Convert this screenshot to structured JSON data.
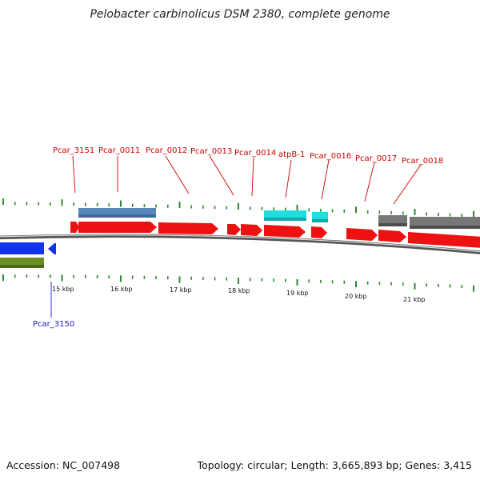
{
  "title": "Pelobacter carbinolicus DSM 2380, complete genome",
  "footer": {
    "accession": "Accession: NC_007498",
    "summary": "Topology: circular; Length: 3,665,893 bp; Genes: 3,415"
  },
  "colors": {
    "cds": "#ee1111",
    "rna": "#5588bb",
    "atp": "#22dddd",
    "grey": "#666666",
    "reverse_blue": "#1133ee",
    "olive": "#6b8e23",
    "tick": "#2b8a2b",
    "label_forward": "#cc0000",
    "label_reverse": "#1a1acc"
  },
  "kbp_labels": [
    "15 kbp",
    "16 kbp",
    "17 kbp",
    "18 kbp",
    "19 kbp",
    "20 kbp",
    "21 kbp"
  ],
  "forward_labels": [
    "Pcar_3151",
    "Pcar_0011",
    "Pcar_0012",
    "Pcar_0013",
    "Pcar_0014",
    "atpB-1",
    "Pcar_0016",
    "Pcar_0017",
    "Pcar_0018"
  ],
  "reverse_labels": [
    "Pcar_3150"
  ]
}
